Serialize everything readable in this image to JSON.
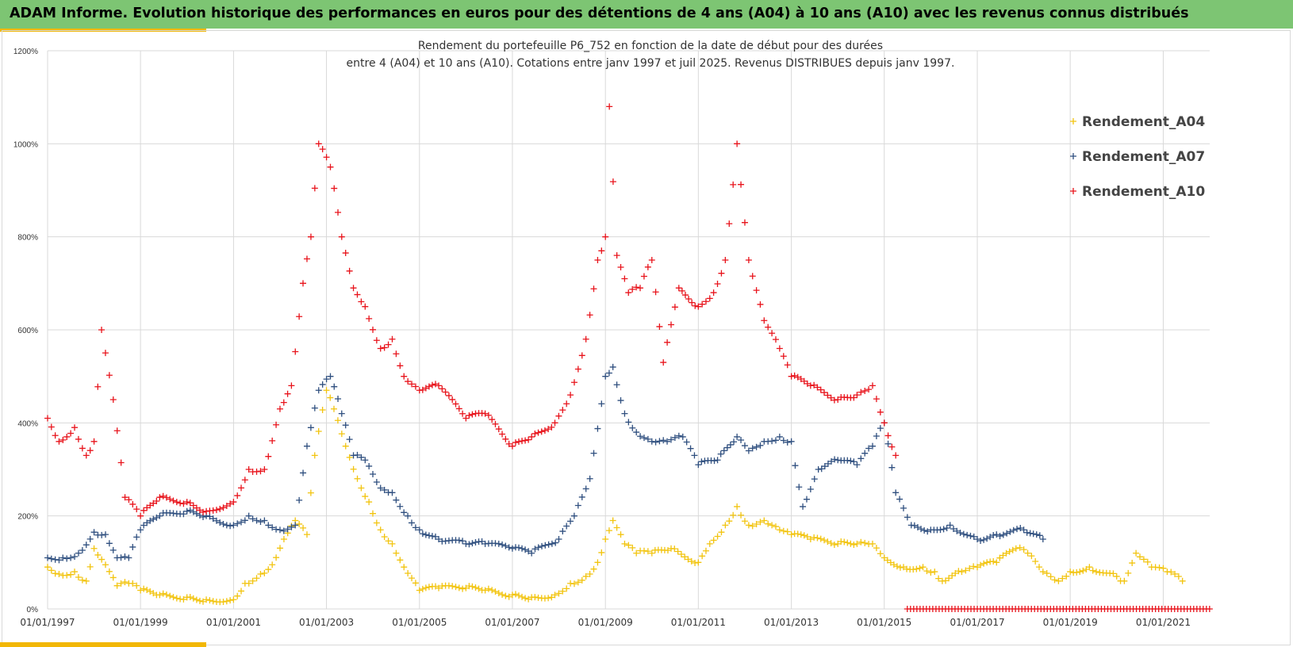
{
  "banner": {
    "text": "ADAM Informe. Evolution historique des performances en euros pour des détentions de 4 ans (A04) à 10 ans (A10) avec les revenus connus distribués"
  },
  "colors": {
    "banner_bg": "#7dc573",
    "accent": "#f2b705",
    "grid": "#d9d9d9",
    "A04": "#f2c40f",
    "A07": "#2f4f7f",
    "A10": "#e8131b"
  },
  "chart_data": {
    "type": "scatter",
    "title_line1": "Rendement du portefeuille P6_752 en fonction de la date de début pour des durées",
    "title_line2": "entre 4 (A04) et 10 ans (A10). Cotations  entre janv 1997 et juil 2025. Revenus DISTRIBUES depuis janv 1997.",
    "xlabel": "",
    "ylabel": "",
    "xlim": [
      "1997-01-01",
      "2022-01-01"
    ],
    "ylim": [
      0,
      1200
    ],
    "y_ticks": [
      "0%",
      "200%",
      "400%",
      "600%",
      "800%",
      "1000%",
      "1200%"
    ],
    "x_ticks": [
      "01/01/1997",
      "01/01/1999",
      "01/01/2001",
      "01/01/2003",
      "01/01/2005",
      "01/01/2007",
      "01/01/2009",
      "01/01/2011",
      "01/01/2013",
      "01/01/2015",
      "01/01/2017",
      "01/01/2019",
      "01/01/2021"
    ],
    "grid": true,
    "marker": "+",
    "legend_position": "top-right",
    "series": [
      {
        "name": "Rendement_A04",
        "x": [
          "1997-01-01",
          "1997-04-01",
          "1997-08-01",
          "1997-11-01",
          "1998-01-01",
          "1998-04-01",
          "1998-07-01",
          "1998-10-01",
          "1999-01-01",
          "1999-06-01",
          "2000-01-01",
          "2000-06-01",
          "2001-01-01",
          "2001-04-01",
          "2001-08-01",
          "2001-11-01",
          "2002-02-01",
          "2002-05-01",
          "2002-08-01",
          "2002-10-01",
          "2003-01-01",
          "2003-03-01",
          "2003-06-01",
          "2003-09-01",
          "2003-12-01",
          "2004-03-01",
          "2004-06-01",
          "2004-09-01",
          "2005-01-01",
          "2005-06-01",
          "2006-01-01",
          "2006-06-01",
          "2007-01-01",
          "2007-06-01",
          "2007-12-01",
          "2008-04-01",
          "2008-08-01",
          "2008-11-01",
          "2009-01-01",
          "2009-03-01",
          "2009-06-01",
          "2009-09-01",
          "2010-01-01",
          "2010-06-01",
          "2011-01-01",
          "2011-04-01",
          "2011-08-01",
          "2011-11-01",
          "2012-02-01",
          "2012-06-01",
          "2012-10-01",
          "2013-01-01",
          "2013-06-01",
          "2014-01-01",
          "2014-06-01",
          "2014-10-01",
          "2015-01-01",
          "2015-06-01",
          "2015-11-01",
          "2016-02-01",
          "2016-04-01",
          "2016-09-01",
          "2017-01-01",
          "2017-06-01",
          "2017-11-01",
          "2018-02-01",
          "2018-06-01",
          "2018-10-01",
          "2019-01-01",
          "2019-06-01",
          "2020-01-01",
          "2020-03-01",
          "2020-06-01",
          "2020-10-01",
          "2021-02-01",
          "2021-06-01"
        ],
        "y": [
          90,
          75,
          80,
          60,
          130,
          95,
          50,
          55,
          40,
          30,
          25,
          20,
          20,
          55,
          75,
          95,
          150,
          190,
          160,
          330,
          470,
          430,
          350,
          280,
          230,
          170,
          140,
          90,
          40,
          45,
          45,
          40,
          30,
          25,
          30,
          55,
          70,
          100,
          150,
          190,
          140,
          120,
          120,
          130,
          100,
          140,
          180,
          220,
          180,
          190,
          170,
          160,
          150,
          140,
          140,
          140,
          110,
          90,
          90,
          80,
          60,
          80,
          90,
          100,
          130,
          120,
          80,
          60,
          80,
          90,
          70,
          60,
          120,
          90,
          80,
          60
        ]
      },
      {
        "name": "Rendement_A07",
        "x": [
          "1997-01-01",
          "1997-05-01",
          "1997-09-01",
          "1998-01-01",
          "1998-04-01",
          "1998-07-01",
          "1998-10-01",
          "1999-01-01",
          "1999-06-01",
          "2000-01-01",
          "2000-06-01",
          "2001-01-01",
          "2001-05-01",
          "2001-09-01",
          "2002-01-01",
          "2002-05-01",
          "2002-08-01",
          "2002-11-01",
          "2003-02-01",
          "2003-05-01",
          "2003-08-01",
          "2003-11-01",
          "2004-03-01",
          "2004-06-01",
          "2004-10-01",
          "2005-01-01",
          "2005-06-01",
          "2006-01-01",
          "2006-06-01",
          "2007-01-01",
          "2007-06-01",
          "2008-01-01",
          "2008-05-01",
          "2008-09-01",
          "2009-01-01",
          "2009-03-01",
          "2009-06-01",
          "2009-09-01",
          "2010-01-01",
          "2010-05-01",
          "2010-09-01",
          "2011-01-01",
          "2011-06-01",
          "2011-11-01",
          "2012-02-01",
          "2012-06-01",
          "2012-10-01",
          "2013-01-01",
          "2013-04-01",
          "2013-08-01",
          "2014-01-01",
          "2014-06-01",
          "2014-10-01",
          "2015-01-01",
          "2015-04-01",
          "2015-08-01",
          "2016-01-01",
          "2016-06-01",
          "2017-01-01",
          "2017-06-01",
          "2018-01-01",
          "2018-06-01"
        ],
        "y": [
          110,
          110,
          120,
          165,
          160,
          110,
          110,
          170,
          200,
          210,
          200,
          180,
          200,
          190,
          170,
          180,
          350,
          470,
          500,
          420,
          330,
          320,
          260,
          250,
          200,
          170,
          150,
          140,
          140,
          130,
          120,
          150,
          200,
          280,
          500,
          520,
          420,
          380,
          360,
          360,
          370,
          310,
          320,
          370,
          340,
          360,
          370,
          360,
          220,
          300,
          320,
          310,
          350,
          400,
          250,
          180,
          170,
          180,
          150,
          160,
          170,
          150
        ]
      },
      {
        "name": "Rendement_A10",
        "x": [
          "1997-01-01",
          "1997-04-01",
          "1997-08-01",
          "1997-11-01",
          "1998-01-01",
          "1998-03-01",
          "1998-06-01",
          "1998-09-01",
          "1999-01-01",
          "1999-06-01",
          "2000-01-01",
          "2000-06-01",
          "2001-01-01",
          "2001-05-01",
          "2001-09-01",
          "2002-01-01",
          "2002-04-01",
          "2002-07-01",
          "2002-09-01",
          "2002-11-01",
          "2003-02-01",
          "2003-05-01",
          "2003-08-01",
          "2003-11-01",
          "2004-03-01",
          "2004-06-01",
          "2004-09-01",
          "2005-01-01",
          "2005-06-01",
          "2006-01-01",
          "2006-06-01",
          "2007-01-01",
          "2007-06-01",
          "2007-12-01",
          "2008-04-01",
          "2008-08-01",
          "2008-11-01",
          "2009-01-01",
          "2009-02-01",
          "2009-04-01",
          "2009-07-01",
          "2009-10-01",
          "2010-01-01",
          "2010-04-01",
          "2010-08-01",
          "2011-01-01",
          "2011-05-01",
          "2011-08-01",
          "2011-11-01",
          "2012-02-01",
          "2012-06-01",
          "2012-10-01",
          "2013-01-01",
          "2013-06-01",
          "2014-01-01",
          "2014-06-01",
          "2014-10-01",
          "2015-01-01",
          "2015-04-01"
        ],
        "y": [
          410,
          360,
          390,
          330,
          360,
          600,
          450,
          240,
          200,
          240,
          230,
          210,
          230,
          300,
          300,
          430,
          480,
          700,
          800,
          1000,
          950,
          800,
          690,
          650,
          560,
          580,
          500,
          470,
          480,
          410,
          420,
          350,
          370,
          400,
          460,
          580,
          750,
          800,
          1080,
          760,
          680,
          690,
          750,
          530,
          690,
          650,
          680,
          750,
          1000,
          750,
          620,
          560,
          500,
          480,
          450,
          460,
          480,
          400,
          330
        ]
      },
      {
        "name": "",
        "x": [
          "2015-07-01",
          "2021-12-31"
        ],
        "y": [
          0,
          0
        ]
      }
    ]
  }
}
